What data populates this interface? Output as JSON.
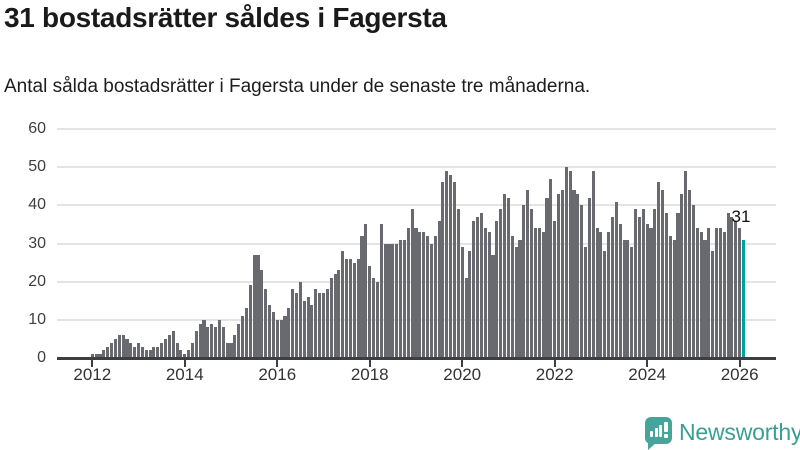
{
  "header": {
    "title": "31 bostadsrätter såldes i Fagersta",
    "subtitle": "Antal sålda bostadsrätter i Fagersta under de senaste tre månaderna."
  },
  "chart_data": {
    "type": "bar",
    "title": "31 bostadsrätter såldes i Fagersta",
    "subtitle": "Antal sålda bostadsrätter i Fagersta under de senaste tre månaderna.",
    "frequency": "monthly",
    "start_month": "2012-01",
    "end_month": "2026-02",
    "values": [
      1,
      1,
      1,
      2,
      3,
      4,
      5,
      6,
      6,
      5,
      4,
      3,
      4,
      3,
      2,
      2,
      3,
      3,
      4,
      5,
      6,
      7,
      4,
      2,
      1,
      2,
      4,
      7,
      9,
      10,
      8,
      9,
      8,
      10,
      8,
      4,
      4,
      6,
      9,
      11,
      13,
      19,
      27,
      27,
      23,
      18,
      14,
      12,
      10,
      10,
      11,
      13,
      18,
      17,
      20,
      15,
      16,
      14,
      18,
      17,
      17,
      18,
      21,
      22,
      23,
      28,
      26,
      26,
      25,
      26,
      32,
      35,
      24,
      21,
      20,
      35,
      30,
      30,
      30,
      30,
      31,
      31,
      34,
      39,
      34,
      33,
      33,
      32,
      30,
      32,
      36,
      46,
      49,
      48,
      46,
      39,
      29,
      21,
      28,
      36,
      37,
      38,
      34,
      33,
      27,
      36,
      39,
      43,
      42,
      32,
      29,
      31,
      40,
      44,
      39,
      34,
      34,
      33,
      42,
      47,
      36,
      43,
      44,
      50,
      49,
      44,
      43,
      40,
      29,
      42,
      49,
      34,
      33,
      28,
      33,
      37,
      41,
      35,
      31,
      31,
      29,
      39,
      37,
      39,
      35,
      34,
      39,
      46,
      44,
      38,
      32,
      31,
      38,
      43,
      49,
      44,
      40,
      34,
      33,
      31,
      34,
      28,
      34,
      34,
      33,
      38,
      37,
      36,
      34,
      31
    ],
    "highlight": {
      "index": 169,
      "value": 31,
      "label": "31",
      "color": "#00a19a"
    },
    "yticks": [
      0,
      10,
      20,
      30,
      40,
      50,
      60
    ],
    "xticks": [
      "2012",
      "2014",
      "2016",
      "2018",
      "2020",
      "2022",
      "2024",
      "2026"
    ],
    "ylim": [
      0,
      60
    ],
    "xlabel": "",
    "ylabel": "",
    "grid": true,
    "legend": "none",
    "colors": {
      "bar": "#696970",
      "highlight": "#00a19a",
      "gridline": "#e4e4e4",
      "axis": "#3e3e42"
    }
  },
  "footer": {
    "brand": "Newsworthy",
    "brand_color": "#3a9e94",
    "logo_icon": "bar-chart-speech-bubble",
    "logo_color": "#46a59b"
  }
}
